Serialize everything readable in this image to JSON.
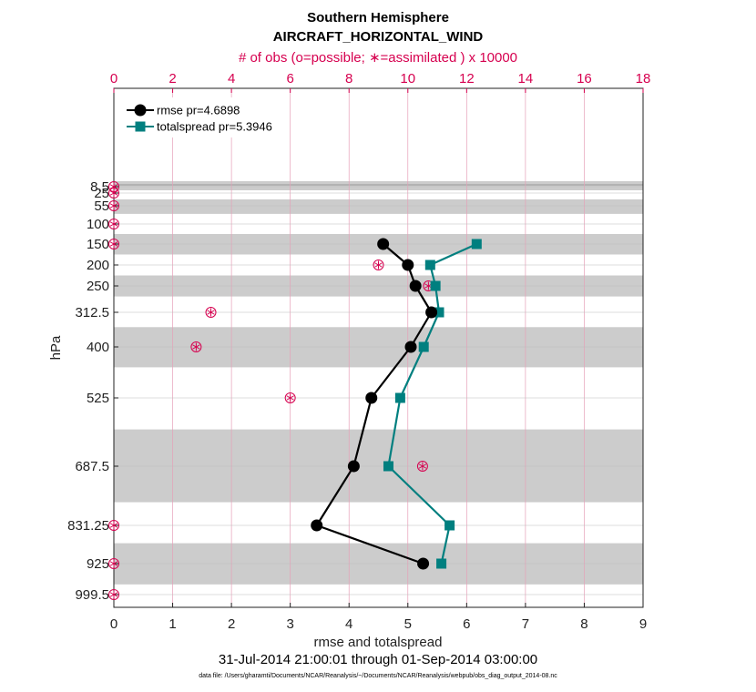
{
  "chart_data": {
    "type": "line",
    "title": "Southern Hemisphere",
    "subtitle": "AIRCRAFT_HORIZONTAL_WIND",
    "top_axis_label": "# of obs (o=possible; ∗=assimilated ) x 10000",
    "xlabel": "rmse and totalspread",
    "ylabel": "hPa",
    "date_range": "31-Jul-2014 21:00:01 through 01-Sep-2014 03:00:00",
    "file_note": "data file: /Users/gharamti/Documents/NCAR/Reanalysis/~/Documents/NCAR/Reanalysis/webpub/obs_diag_output_2014-08.nc",
    "xlim": [
      0,
      9
    ],
    "x_ticks": [
      "0",
      "1",
      "2",
      "3",
      "4",
      "5",
      "6",
      "7",
      "8",
      "9"
    ],
    "top_xlim": [
      0,
      18
    ],
    "top_ticks": [
      "0",
      "2",
      "4",
      "6",
      "8",
      "10",
      "12",
      "14",
      "16",
      "18"
    ],
    "y_levels": [
      8.5,
      25,
      55,
      100,
      150,
      200,
      250,
      312.5,
      400,
      525,
      687.5,
      831.25,
      925,
      999.5
    ],
    "y_tick_labels": [
      "8.5",
      "25",
      "55",
      "100",
      "150",
      "200",
      "250",
      "312.5",
      "400",
      "525",
      "687.5",
      "831.25",
      "925",
      "999.5"
    ],
    "series": [
      {
        "name": "rmse",
        "legend": "rmse pr=4.6898",
        "color": "#000000",
        "marker": "circle",
        "levels": [
          150,
          200,
          250,
          312.5,
          400,
          525,
          687.5,
          831.25,
          925
        ],
        "values": [
          4.58,
          5.0,
          5.13,
          5.4,
          5.05,
          4.38,
          4.08,
          3.45,
          5.26
        ]
      },
      {
        "name": "totalspread",
        "legend": "totalspread pr=5.3946",
        "color": "#007f7f",
        "marker": "square",
        "levels": [
          150,
          200,
          250,
          312.5,
          400,
          525,
          687.5,
          831.25,
          925
        ],
        "values": [
          6.17,
          5.38,
          5.47,
          5.53,
          5.27,
          4.87,
          4.67,
          5.71,
          5.57
        ]
      }
    ],
    "obs_counts": {
      "color": "#d6004f",
      "levels": [
        8.5,
        25,
        55,
        100,
        150,
        200,
        250,
        312.5,
        400,
        525,
        687.5,
        831.25,
        925,
        999.5
      ],
      "possible": [
        0,
        0,
        0,
        0,
        0,
        9.0,
        10.7,
        3.3,
        2.8,
        6.0,
        10.5,
        0,
        0,
        0
      ],
      "assimilated": [
        0,
        0,
        0,
        0,
        0,
        9.0,
        10.7,
        3.3,
        2.8,
        6.0,
        10.5,
        0,
        0,
        0
      ]
    }
  }
}
